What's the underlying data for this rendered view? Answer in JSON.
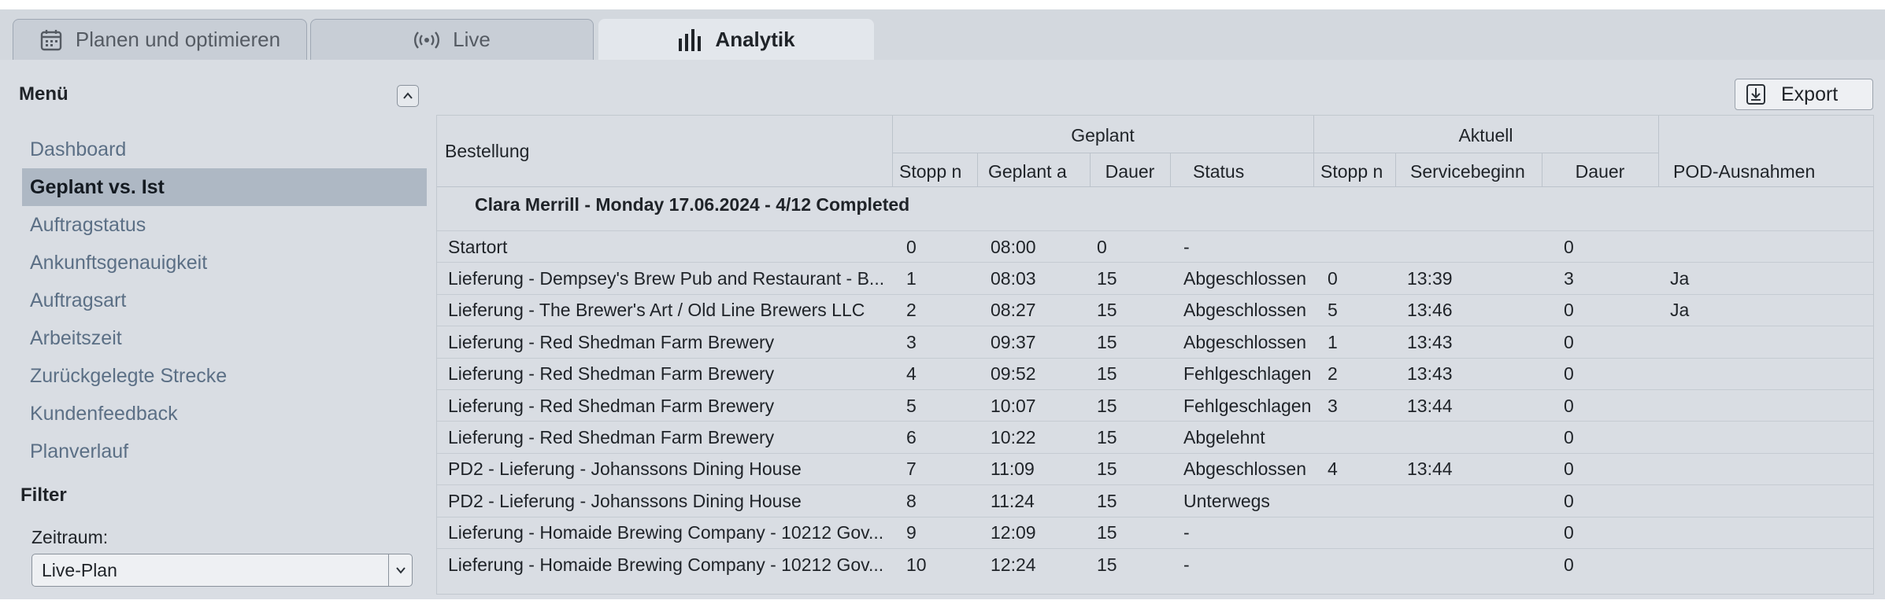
{
  "tabs": [
    {
      "label": "Planen und optimieren",
      "icon": "calendar-icon",
      "active": false
    },
    {
      "label": "Live",
      "icon": "broadcast-icon",
      "active": false
    },
    {
      "label": "Analytik",
      "icon": "bar-chart-icon",
      "active": true
    }
  ],
  "sidebar": {
    "menu_title": "Menü",
    "items": [
      {
        "label": "Dashboard"
      },
      {
        "label": "Geplant vs. Ist"
      },
      {
        "label": "Auftragstatus"
      },
      {
        "label": "Ankunftsgenauigkeit"
      },
      {
        "label": "Auftragsart"
      },
      {
        "label": "Arbeitszeit"
      },
      {
        "label": "Zurückgelegte Strecke"
      },
      {
        "label": "Kundenfeedback"
      },
      {
        "label": "Planverlauf"
      }
    ],
    "active_item": "Geplant vs. Ist",
    "filter_title": "Filter",
    "zeitraum_label": "Zeitraum:",
    "zeitraum_value": "Live-Plan"
  },
  "toolbar": {
    "export_label": "Export"
  },
  "table": {
    "col_bestellung": "Bestellung",
    "group_geplant": "Geplant",
    "group_aktuell": "Aktuell",
    "col_pod": "POD-Ausnahmen",
    "sub_geplant": [
      "Stopp n",
      "Geplant a",
      "Dauer",
      "Status"
    ],
    "sub_aktuell": [
      "Stopp n",
      "Servicebeginn",
      "Dauer"
    ],
    "group_title": "Clara Merrill - Monday 17.06.2024 - 4/12 Completed",
    "rows": [
      {
        "order": "Startort",
        "stop": "0",
        "planned": "08:00",
        "duration": "0",
        "status": "-",
        "act_stop": "",
        "service": "",
        "act_duration": "0",
        "pod": ""
      },
      {
        "order": "Lieferung - Dempsey's Brew Pub and Restaurant - B...",
        "stop": "1",
        "planned": "08:03",
        "duration": "15",
        "status": "Abgeschlossen",
        "act_stop": "0",
        "service": "13:39",
        "act_duration": "3",
        "pod": "Ja"
      },
      {
        "order": "Lieferung - The Brewer's Art / Old Line Brewers LLC",
        "stop": "2",
        "planned": "08:27",
        "duration": "15",
        "status": "Abgeschlossen",
        "act_stop": "5",
        "service": "13:46",
        "act_duration": "0",
        "pod": "Ja"
      },
      {
        "order": "Lieferung - Red Shedman Farm Brewery",
        "stop": "3",
        "planned": "09:37",
        "duration": "15",
        "status": "Abgeschlossen",
        "act_stop": "1",
        "service": "13:43",
        "act_duration": "0",
        "pod": ""
      },
      {
        "order": "Lieferung - Red Shedman Farm Brewery",
        "stop": "4",
        "planned": "09:52",
        "duration": "15",
        "status": "Fehlgeschlagen",
        "act_stop": "2",
        "service": "13:43",
        "act_duration": "0",
        "pod": ""
      },
      {
        "order": "Lieferung - Red Shedman Farm Brewery",
        "stop": "5",
        "planned": "10:07",
        "duration": "15",
        "status": "Fehlgeschlagen",
        "act_stop": "3",
        "service": "13:44",
        "act_duration": "0",
        "pod": ""
      },
      {
        "order": "Lieferung - Red Shedman Farm Brewery",
        "stop": "6",
        "planned": "10:22",
        "duration": "15",
        "status": "Abgelehnt",
        "act_stop": "",
        "service": "",
        "act_duration": "0",
        "pod": ""
      },
      {
        "order": "PD2 - Lieferung - Johanssons Dining House",
        "stop": "7",
        "planned": "11:09",
        "duration": "15",
        "status": "Abgeschlossen",
        "act_stop": "4",
        "service": "13:44",
        "act_duration": "0",
        "pod": ""
      },
      {
        "order": "PD2 - Lieferung - Johanssons Dining House",
        "stop": "8",
        "planned": "11:24",
        "duration": "15",
        "status": "Unterwegs",
        "act_stop": "",
        "service": "",
        "act_duration": "0",
        "pod": ""
      },
      {
        "order": "Lieferung - Homaide Brewing Company - 10212 Gov...",
        "stop": "9",
        "planned": "12:09",
        "duration": "15",
        "status": "-",
        "act_stop": "",
        "service": "",
        "act_duration": "0",
        "pod": ""
      },
      {
        "order": "Lieferung - Homaide Brewing Company - 10212 Gov...",
        "stop": "10",
        "planned": "12:24",
        "duration": "15",
        "status": "-",
        "act_stop": "",
        "service": "",
        "act_duration": "0",
        "pod": ""
      }
    ]
  }
}
